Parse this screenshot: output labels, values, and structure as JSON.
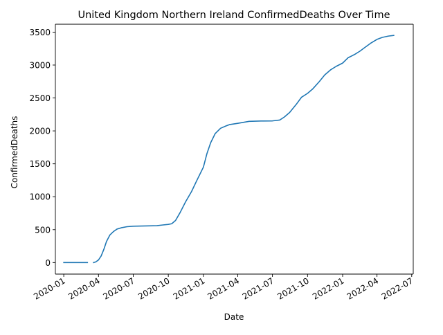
{
  "chart_data": {
    "type": "line",
    "title": "United Kingdom Northern Ireland ConfirmedDeaths Over Time",
    "xlabel": "Date",
    "ylabel": "ConfirmedDeaths",
    "xlim": [
      "2019-12-10",
      "2022-07-05"
    ],
    "ylim": [
      -175,
      3620
    ],
    "x_ticks": [
      "2020-01-01",
      "2020-04-01",
      "2020-07-01",
      "2020-10-01",
      "2021-01-01",
      "2021-04-01",
      "2021-07-01",
      "2021-10-01",
      "2022-01-01",
      "2022-04-01",
      "2022-07-01"
    ],
    "x_tick_labels": [
      "2020-01",
      "2020-04",
      "2020-07",
      "2020-10",
      "2021-01",
      "2021-04",
      "2021-07",
      "2021-10",
      "2022-01",
      "2022-04",
      "2022-07"
    ],
    "y_ticks": [
      0,
      500,
      1000,
      1500,
      2000,
      2500,
      3000,
      3500
    ],
    "y_tick_labels": [
      "0",
      "500",
      "1000",
      "1500",
      "2000",
      "2500",
      "3000",
      "3500"
    ],
    "grid": false,
    "line_color": "#1f77b4",
    "series": [
      {
        "segments": [
          [
            [
              "2020-01-01",
              0
            ],
            [
              "2020-03-03",
              0
            ]
          ],
          [
            [
              "2020-03-19",
              0
            ],
            [
              "2020-03-25",
              10
            ],
            [
              "2020-04-01",
              40
            ],
            [
              "2020-04-08",
              100
            ],
            [
              "2020-04-15",
              200
            ],
            [
              "2020-04-22",
              320
            ],
            [
              "2020-05-01",
              420
            ],
            [
              "2020-05-10",
              470
            ],
            [
              "2020-05-20",
              510
            ],
            [
              "2020-06-01",
              530
            ],
            [
              "2020-06-15",
              545
            ],
            [
              "2020-07-01",
              552
            ],
            [
              "2020-08-01",
              556
            ],
            [
              "2020-09-01",
              560
            ],
            [
              "2020-09-15",
              570
            ],
            [
              "2020-10-01",
              580
            ],
            [
              "2020-10-10",
              590
            ],
            [
              "2020-10-20",
              640
            ],
            [
              "2020-11-01",
              760
            ],
            [
              "2020-11-15",
              920
            ],
            [
              "2020-12-01",
              1080
            ],
            [
              "2020-12-15",
              1250
            ],
            [
              "2021-01-01",
              1450
            ],
            [
              "2021-01-10",
              1650
            ],
            [
              "2021-01-20",
              1820
            ],
            [
              "2021-02-01",
              1960
            ],
            [
              "2021-02-15",
              2040
            ],
            [
              "2021-03-01",
              2075
            ],
            [
              "2021-03-10",
              2095
            ],
            [
              "2021-04-01",
              2115
            ],
            [
              "2021-05-01",
              2145
            ],
            [
              "2021-06-01",
              2150
            ],
            [
              "2021-07-01",
              2152
            ],
            [
              "2021-07-20",
              2165
            ],
            [
              "2021-08-01",
              2210
            ],
            [
              "2021-08-15",
              2280
            ],
            [
              "2021-09-01",
              2400
            ],
            [
              "2021-09-15",
              2510
            ],
            [
              "2021-10-01",
              2570
            ],
            [
              "2021-10-15",
              2640
            ],
            [
              "2021-11-01",
              2750
            ],
            [
              "2021-11-15",
              2850
            ],
            [
              "2021-12-01",
              2930
            ],
            [
              "2021-12-15",
              2980
            ],
            [
              "2022-01-01",
              3030
            ],
            [
              "2022-01-15",
              3110
            ],
            [
              "2022-02-01",
              3160
            ],
            [
              "2022-02-15",
              3210
            ],
            [
              "2022-03-01",
              3270
            ],
            [
              "2022-03-15",
              3330
            ],
            [
              "2022-04-01",
              3390
            ],
            [
              "2022-04-15",
              3420
            ],
            [
              "2022-05-01",
              3440
            ],
            [
              "2022-05-15",
              3450
            ]
          ]
        ]
      }
    ]
  }
}
